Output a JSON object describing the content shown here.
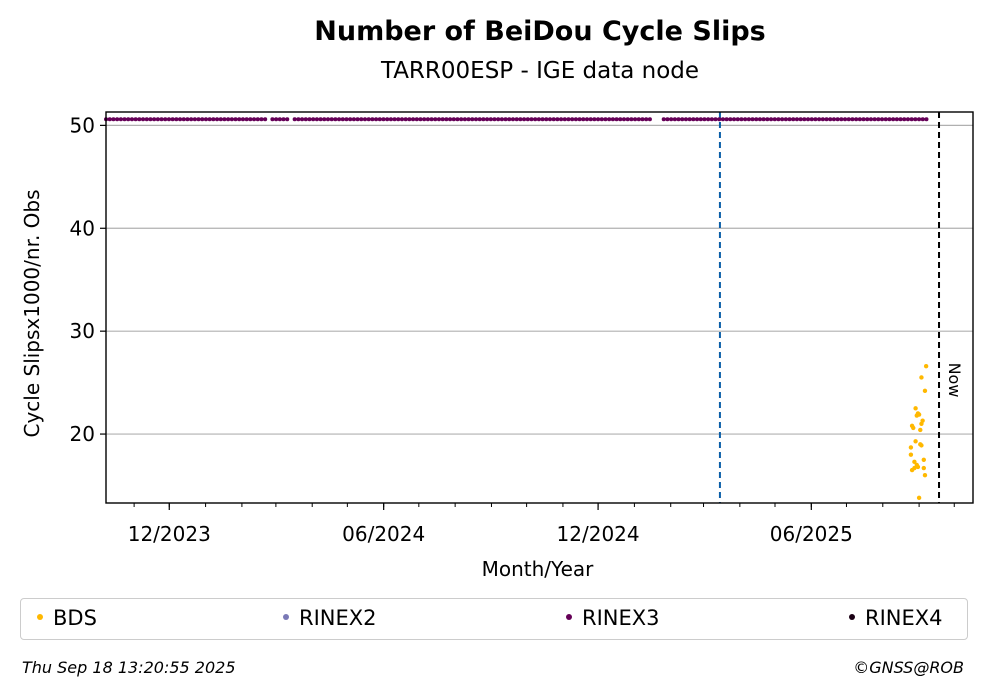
{
  "chart_data": {
    "type": "scatter",
    "title": "Number of BeiDou Cycle Slips",
    "subtitle": "TARR00ESP - IGE data node",
    "xlabel": "Month/Year",
    "ylabel": "Cycle Slipsx1000/nr. Obs",
    "x_ticks": [
      "12/2023",
      "06/2024",
      "12/2024",
      "06/2025"
    ],
    "y_ticks": [
      20,
      30,
      40,
      50
    ],
    "ylim": [
      13.3,
      51.3
    ],
    "xlim": [
      "2023-10-08",
      "2025-10-17"
    ],
    "grid": "y",
    "legend_position": "bottom",
    "vertical_lines": [
      {
        "x": "2025-03-15",
        "style": "dashed",
        "color": "#0a5ea8"
      },
      {
        "x": "2025-09-18",
        "style": "dashed",
        "color": "#000000",
        "label": "Now"
      }
    ],
    "series": [
      {
        "name": "BDS",
        "color": "#ffb800",
        "points": [
          [
            "2025-08-25",
            18.0
          ],
          [
            "2025-08-25",
            18.7
          ],
          [
            "2025-08-26",
            16.5
          ],
          [
            "2025-08-26",
            20.8
          ],
          [
            "2025-08-27",
            20.6
          ],
          [
            "2025-08-28",
            17.3
          ],
          [
            "2025-08-28",
            16.7
          ],
          [
            "2025-08-29",
            19.3
          ],
          [
            "2025-08-29",
            22.5
          ],
          [
            "2025-08-30",
            21.8
          ],
          [
            "2025-08-30",
            17.0
          ],
          [
            "2025-08-31",
            16.8
          ],
          [
            "2025-08-31",
            22.0
          ],
          [
            "2025-09-01",
            13.8
          ],
          [
            "2025-09-01",
            21.9
          ],
          [
            "2025-09-02",
            20.4
          ],
          [
            "2025-09-02",
            19.0
          ],
          [
            "2025-09-03",
            25.5
          ],
          [
            "2025-09-03",
            18.9
          ],
          [
            "2025-09-03",
            21.0
          ],
          [
            "2025-09-04",
            21.3
          ],
          [
            "2025-09-05",
            16.7
          ],
          [
            "2025-09-05",
            17.5
          ],
          [
            "2025-09-06",
            24.2
          ],
          [
            "2025-09-06",
            16.0
          ],
          [
            "2025-09-07",
            26.6
          ]
        ]
      },
      {
        "name": "RINEX2",
        "color": "#7a79b6",
        "points": []
      },
      {
        "name": "RINEX3",
        "color": "#650057",
        "y": 50.6,
        "ranges": [
          [
            "2023-10-08",
            "2024-02-23"
          ],
          [
            "2024-02-27",
            "2024-03-12"
          ],
          [
            "2024-03-17",
            "2025-01-16"
          ],
          [
            "2025-01-26",
            "2025-09-08"
          ]
        ]
      },
      {
        "name": "RINEX4",
        "color": "#1a0014",
        "points": []
      }
    ]
  },
  "footer": {
    "timestamp": "Thu Sep 18 13:20:55 2025",
    "credit": "©GNSS@ROB"
  }
}
